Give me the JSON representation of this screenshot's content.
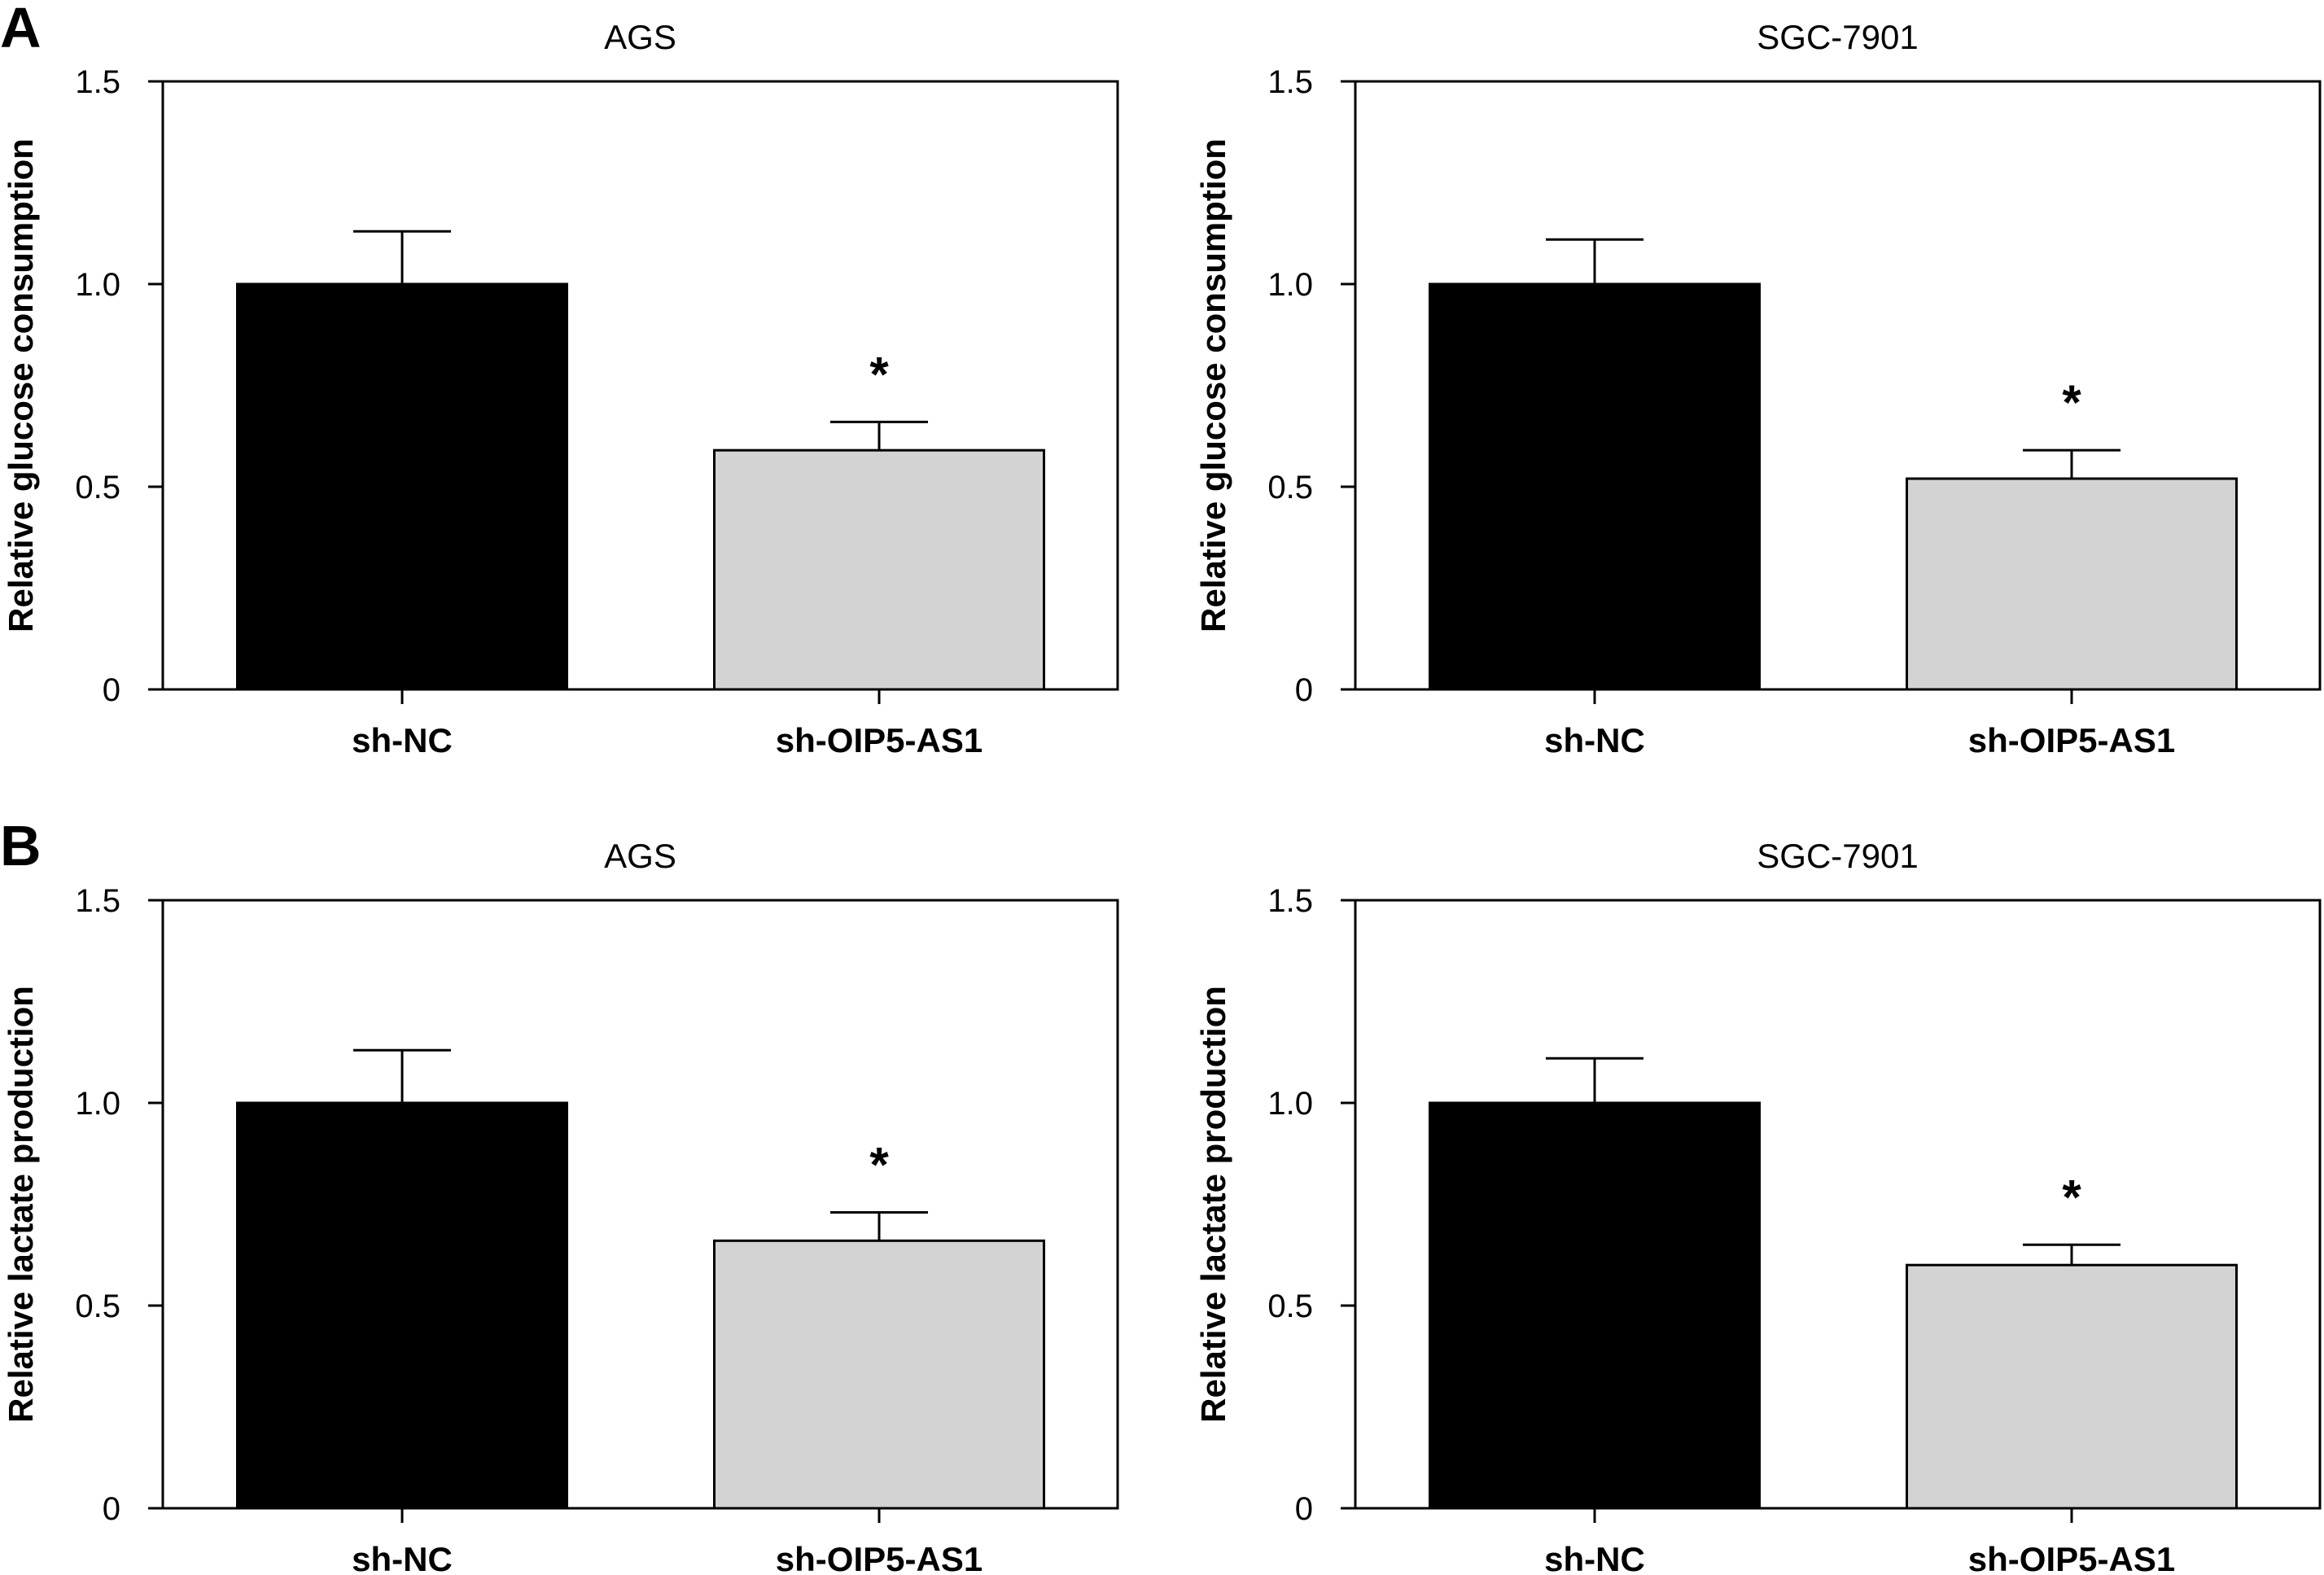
{
  "panel_letters": [
    "A",
    "B"
  ],
  "chart_data": [
    {
      "type": "bar",
      "panel": "A",
      "title": "AGS",
      "ylabel": "Relative glucose consumption",
      "xlabel": "",
      "categories": [
        "sh-NC",
        "sh-OIP5-AS1"
      ],
      "values": [
        1.0,
        0.59
      ],
      "error_upper": [
        0.13,
        0.07
      ],
      "significance": [
        "",
        "*"
      ],
      "colors": [
        "#000000",
        "#d3d3d3"
      ],
      "ylim": [
        0,
        1.5
      ],
      "yticks": [
        0,
        0.5,
        1.0,
        1.5
      ],
      "ytick_labels": [
        "0",
        "0.5",
        "1.0",
        "1.5"
      ],
      "grid": false,
      "legend": "none"
    },
    {
      "type": "bar",
      "panel": "A",
      "title": "SGC-7901",
      "ylabel": "Relative glucose consumption",
      "xlabel": "",
      "categories": [
        "sh-NC",
        "sh-OIP5-AS1"
      ],
      "values": [
        1.0,
        0.52
      ],
      "error_upper": [
        0.11,
        0.07
      ],
      "significance": [
        "",
        "*"
      ],
      "colors": [
        "#000000",
        "#d3d3d3"
      ],
      "ylim": [
        0,
        1.5
      ],
      "yticks": [
        0,
        0.5,
        1.0,
        1.5
      ],
      "ytick_labels": [
        "0",
        "0.5",
        "1.0",
        "1.5"
      ],
      "grid": false,
      "legend": "none"
    },
    {
      "type": "bar",
      "panel": "B",
      "title": "AGS",
      "ylabel": "Relative lactate production",
      "xlabel": "",
      "categories": [
        "sh-NC",
        "sh-OIP5-AS1"
      ],
      "values": [
        1.0,
        0.66
      ],
      "error_upper": [
        0.13,
        0.07
      ],
      "significance": [
        "",
        "*"
      ],
      "colors": [
        "#000000",
        "#d3d3d3"
      ],
      "ylim": [
        0,
        1.5
      ],
      "yticks": [
        0,
        0.5,
        1.0,
        1.5
      ],
      "ytick_labels": [
        "0",
        "0.5",
        "1.0",
        "1.5"
      ],
      "grid": false,
      "legend": "none"
    },
    {
      "type": "bar",
      "panel": "B",
      "title": "SGC-7901",
      "ylabel": "Relative lactate production",
      "xlabel": "",
      "categories": [
        "sh-NC",
        "sh-OIP5-AS1"
      ],
      "values": [
        1.0,
        0.6
      ],
      "error_upper": [
        0.11,
        0.05
      ],
      "significance": [
        "",
        "*"
      ],
      "colors": [
        "#000000",
        "#d3d3d3"
      ],
      "ylim": [
        0,
        1.5
      ],
      "yticks": [
        0,
        0.5,
        1.0,
        1.5
      ],
      "ytick_labels": [
        "0",
        "0.5",
        "1.0",
        "1.5"
      ],
      "grid": false,
      "legend": "none"
    }
  ]
}
